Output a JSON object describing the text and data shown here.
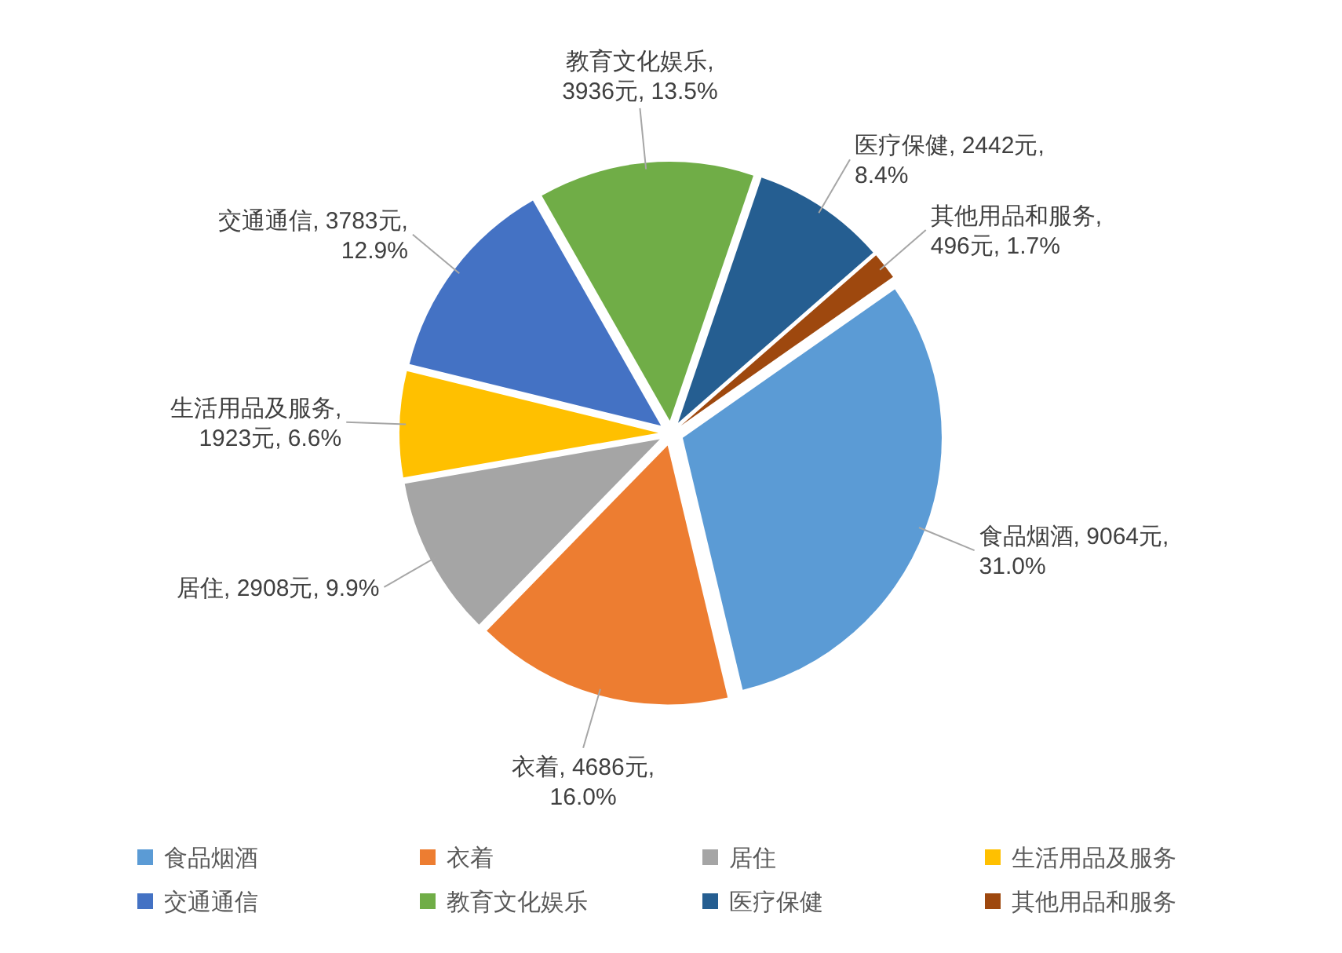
{
  "chart_data": {
    "type": "pie",
    "categories": [
      "食品烟酒",
      "衣着",
      "居住",
      "生活用品及服务",
      "交通通信",
      "教育文化娱乐",
      "医疗保健",
      "其他用品和服务"
    ],
    "values": [
      9064,
      4686,
      2908,
      1923,
      3783,
      3936,
      2442,
      496
    ],
    "colors": [
      "#5b9bd5",
      "#ed7d31",
      "#a5a5a5",
      "#ffc000",
      "#4472c4",
      "#70ad47",
      "#255e91",
      "#9e480e"
    ],
    "value_labels": [
      "食品烟酒, 9064元, 31.0%",
      "衣着, 4686元, 16.0%",
      "居住, 2908元, 9.9%",
      "生活用品及服务, 1923元, 6.6%",
      "交通通信, 3783元, 12.9%",
      "教育文化娱乐, 3936元, 13.5%",
      "医疗保健, 2442元, 8.4%",
      "其他用品和服务, 496元, 1.7%"
    ],
    "legend": "bottom"
  }
}
